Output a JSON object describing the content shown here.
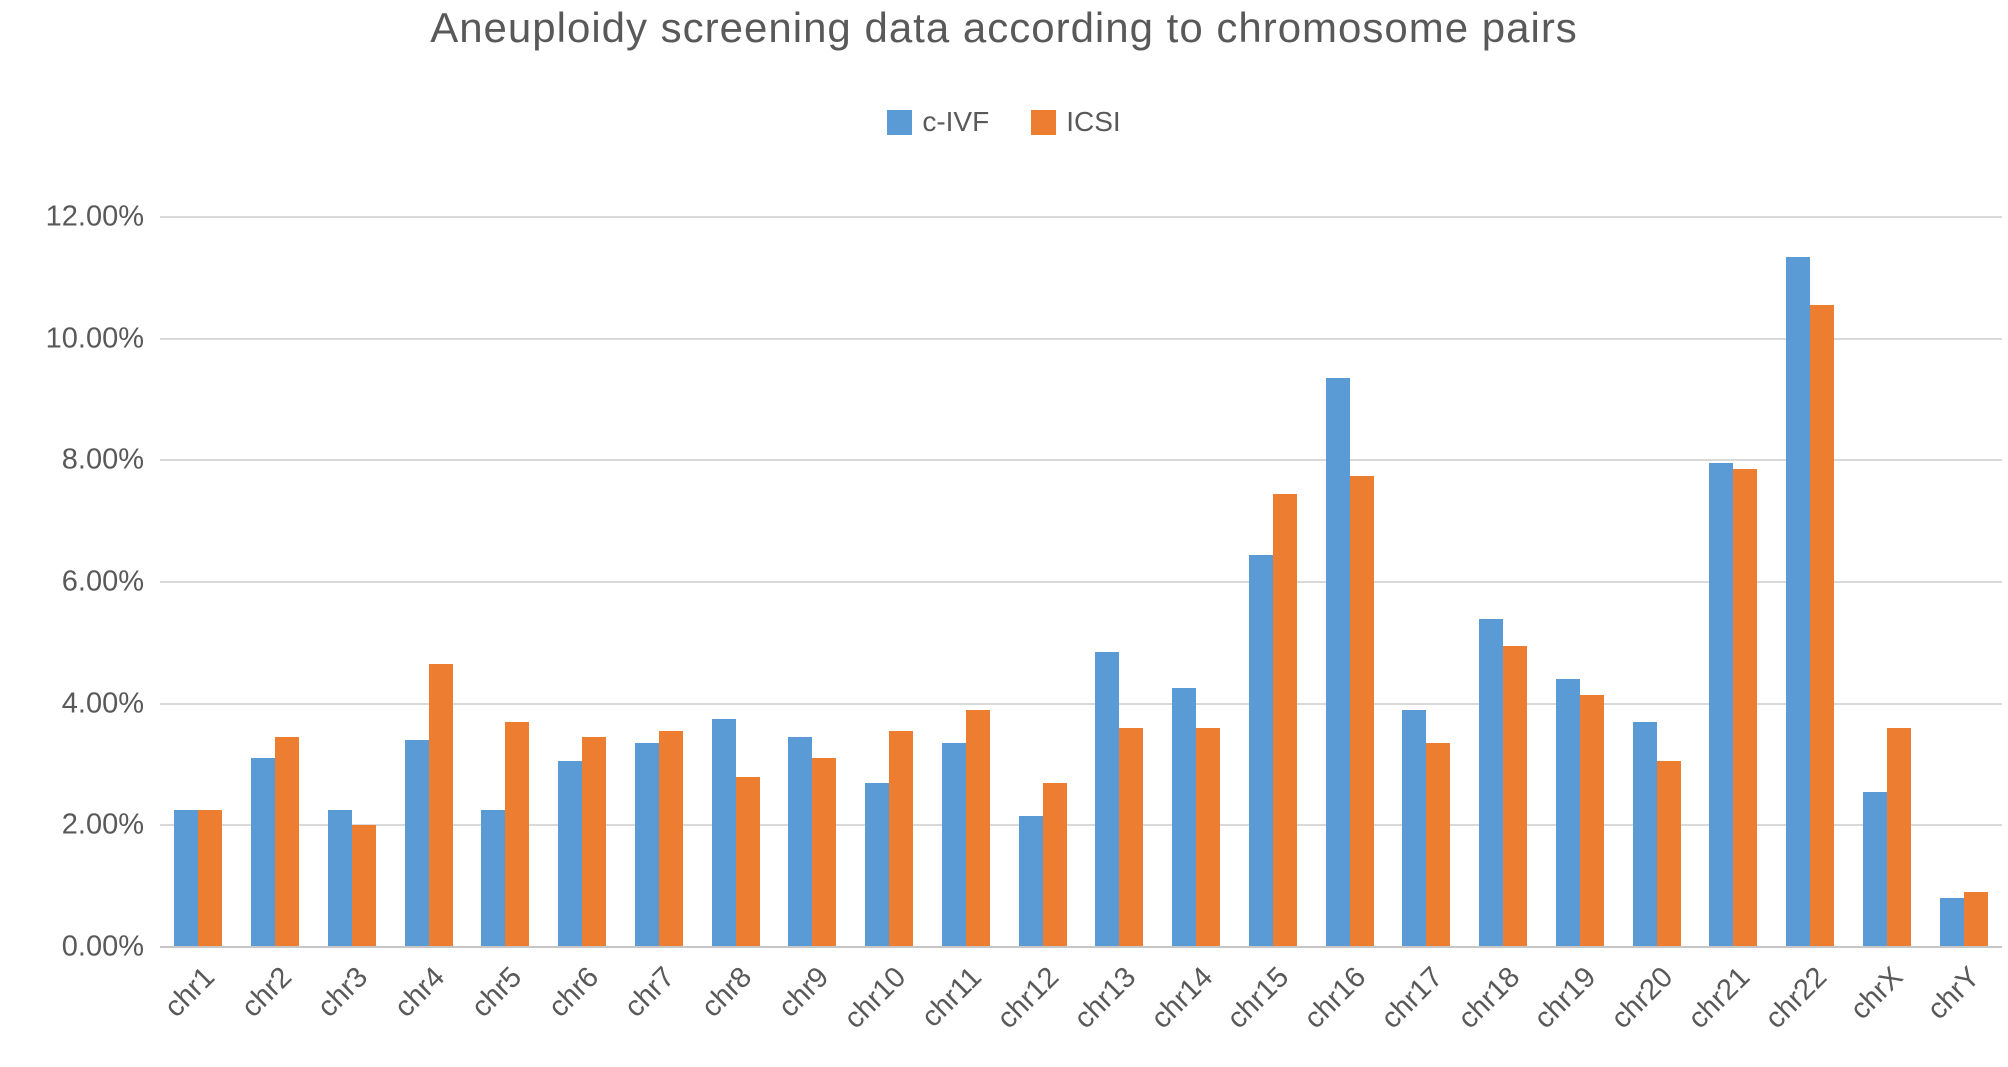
{
  "chart_data": {
    "type": "bar",
    "title": "Aneuploidy screening data according to chromosome pairs",
    "xlabel": "",
    "ylabel": "",
    "categories": [
      "chr1",
      "chr2",
      "chr3",
      "chr4",
      "chr5",
      "chr6",
      "chr7",
      "chr8",
      "chr9",
      "chr10",
      "chr11",
      "chr12",
      "chr13",
      "chr14",
      "chr15",
      "chr16",
      "chr17",
      "chr18",
      "chr19",
      "chr20",
      "chr21",
      "chr22",
      "chrX",
      "chrY"
    ],
    "series": [
      {
        "name": "c-IVF",
        "color": "#5B9BD5",
        "values": [
          2.25,
          3.1,
          2.25,
          3.4,
          2.25,
          3.05,
          3.35,
          3.75,
          3.45,
          2.7,
          3.35,
          2.15,
          4.85,
          4.25,
          6.45,
          9.35,
          3.9,
          5.4,
          4.4,
          3.7,
          7.95,
          11.35,
          2.55,
          0.8
        ]
      },
      {
        "name": "ICSI",
        "color": "#ED7D31",
        "values": [
          2.25,
          3.45,
          2.0,
          4.65,
          3.7,
          3.45,
          3.55,
          2.8,
          3.1,
          3.55,
          3.9,
          2.7,
          3.6,
          3.6,
          7.45,
          7.75,
          3.35,
          4.95,
          4.15,
          3.05,
          7.85,
          10.55,
          3.6,
          0.9
        ]
      }
    ],
    "ylim": [
      0,
      12
    ],
    "ytick_step": 2,
    "ytick_labels": [
      "0.00%",
      "2.00%",
      "4.00%",
      "6.00%",
      "8.00%",
      "10.00%",
      "12.00%"
    ],
    "grid": true,
    "legend_position": "top",
    "colors": {
      "grid": "#D9D9D9",
      "axis_text": "#595959",
      "title_text": "#595959",
      "background": "#FFFFFF"
    }
  }
}
